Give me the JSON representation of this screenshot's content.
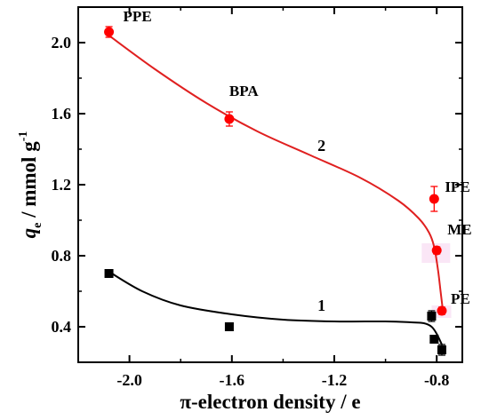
{
  "chart_data": {
    "type": "scatter",
    "xlabel": "π-electron density / e",
    "ylabel_symbol": "q",
    "ylabel_subscript": "e",
    "ylabel_rest": " / mmol g",
    "ylabel_superscript": "-1",
    "xlim": [
      -2.2,
      -0.7
    ],
    "ylim": [
      0.2,
      2.2
    ],
    "x_ticks": [
      -2.0,
      -1.6,
      -1.2,
      -0.8
    ],
    "x_tick_labels": [
      "-2.0",
      "-1.6",
      "-1.2",
      "-0.8"
    ],
    "y_ticks": [
      0.4,
      0.8,
      1.2,
      1.6,
      2.0
    ],
    "y_tick_labels": [
      "0.4",
      "0.8",
      "1.2",
      "1.6",
      "2.0"
    ],
    "grid": false,
    "series": [
      {
        "label": "2",
        "marker": "circle",
        "color": "#ff0000",
        "line_color": "#e02020",
        "points": [
          {
            "x": -2.08,
            "y": 2.06,
            "err": 0.03,
            "label": "PPE"
          },
          {
            "x": -1.61,
            "y": 1.57,
            "err": 0.04,
            "label": "BPA"
          },
          {
            "x": -0.81,
            "y": 1.12,
            "err": 0.07,
            "label": "IPE"
          },
          {
            "x": -0.8,
            "y": 0.83,
            "err": 0.02,
            "label": "ME"
          },
          {
            "x": -0.78,
            "y": 0.49,
            "err": 0.02,
            "label": "PE"
          }
        ],
        "fit_curve": [
          [
            -2.08,
            2.04
          ],
          [
            -1.9,
            1.85
          ],
          [
            -1.7,
            1.66
          ],
          [
            -1.5,
            1.5
          ],
          [
            -1.3,
            1.37
          ],
          [
            -1.1,
            1.24
          ],
          [
            -0.95,
            1.11
          ],
          [
            -0.87,
            1.01
          ],
          [
            -0.83,
            0.93
          ],
          [
            -0.81,
            0.85
          ],
          [
            -0.795,
            0.72
          ],
          [
            -0.785,
            0.6
          ],
          [
            -0.775,
            0.48
          ]
        ]
      },
      {
        "label": "1",
        "marker": "square",
        "color": "#000000",
        "line_color": "#000000",
        "points": [
          {
            "x": -2.08,
            "y": 0.7,
            "err": 0.0
          },
          {
            "x": -1.61,
            "y": 0.4,
            "err": 0.0
          },
          {
            "x": -0.82,
            "y": 0.46,
            "err": 0.03
          },
          {
            "x": -0.81,
            "y": 0.33,
            "err": 0.0
          },
          {
            "x": -0.78,
            "y": 0.27,
            "err": 0.03
          }
        ],
        "fit_curve": [
          [
            -2.08,
            0.71
          ],
          [
            -1.95,
            0.6
          ],
          [
            -1.8,
            0.52
          ],
          [
            -1.6,
            0.47
          ],
          [
            -1.4,
            0.44
          ],
          [
            -1.2,
            0.43
          ],
          [
            -1.0,
            0.43
          ],
          [
            -0.9,
            0.425
          ],
          [
            -0.85,
            0.42
          ],
          [
            -0.82,
            0.4
          ],
          [
            -0.8,
            0.36
          ],
          [
            -0.78,
            0.3
          ]
        ]
      }
    ]
  }
}
